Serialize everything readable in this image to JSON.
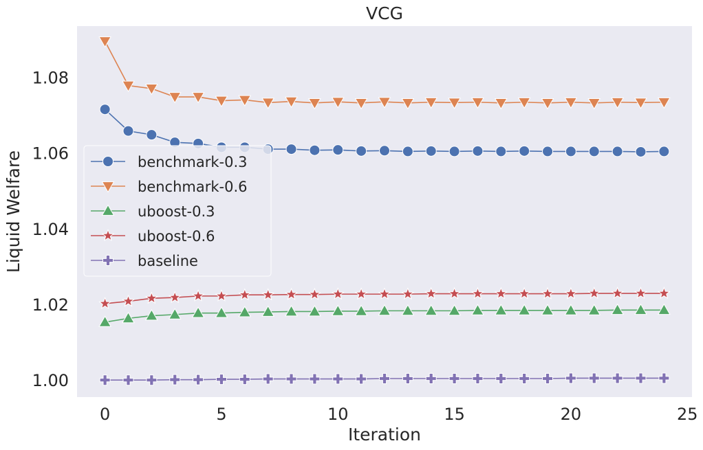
{
  "chart_data": {
    "type": "line",
    "title": "VCG",
    "xlabel": "Iteration",
    "ylabel": "Liquid Welfare",
    "xlim": [
      -1.2,
      25.2
    ],
    "ylim": [
      0.9955,
      1.0935
    ],
    "xticks": [
      0,
      5,
      10,
      15,
      20,
      25
    ],
    "xtick_labels": [
      "0",
      "5",
      "10",
      "15",
      "20",
      "25"
    ],
    "yticks": [
      1.0,
      1.02,
      1.04,
      1.06,
      1.08
    ],
    "ytick_labels": [
      "1.00",
      "1.02",
      "1.04",
      "1.06",
      "1.08"
    ],
    "grid": false,
    "legend_position": "center-left",
    "x": [
      0,
      1,
      2,
      3,
      4,
      5,
      6,
      7,
      8,
      9,
      10,
      11,
      12,
      13,
      14,
      15,
      16,
      17,
      18,
      19,
      20,
      21,
      22,
      23,
      24
    ],
    "series": [
      {
        "name": "benchmark-0.3",
        "color": "#4c72b0",
        "marker": "circle",
        "values": [
          1.0715,
          1.0658,
          1.0648,
          1.0628,
          1.0625,
          1.0615,
          1.0615,
          1.061,
          1.061,
          1.0607,
          1.0608,
          1.0605,
          1.0606,
          1.0604,
          1.0605,
          1.0604,
          1.0605,
          1.0604,
          1.0605,
          1.0604,
          1.0604,
          1.0604,
          1.0604,
          1.0603,
          1.0604
        ]
      },
      {
        "name": "benchmark-0.6",
        "color": "#dd8452",
        "marker": "triangle-down",
        "values": [
          1.0895,
          1.0778,
          1.077,
          1.0748,
          1.0748,
          1.0738,
          1.074,
          1.0733,
          1.0736,
          1.0732,
          1.0735,
          1.0732,
          1.0735,
          1.0732,
          1.0734,
          1.0733,
          1.0734,
          1.0732,
          1.0734,
          1.0732,
          1.0734,
          1.0732,
          1.0734,
          1.0733,
          1.0734
        ]
      },
      {
        "name": "uboost-0.3",
        "color": "#55a868",
        "marker": "triangle-up",
        "values": [
          1.0153,
          1.0163,
          1.017,
          1.0173,
          1.0177,
          1.0177,
          1.0179,
          1.018,
          1.0181,
          1.0181,
          1.0182,
          1.0182,
          1.0183,
          1.0183,
          1.0183,
          1.0183,
          1.0184,
          1.0184,
          1.0184,
          1.0184,
          1.0184,
          1.0184,
          1.0185,
          1.0185,
          1.0185
        ]
      },
      {
        "name": "uboost-0.6",
        "color": "#c44e52",
        "marker": "star",
        "values": [
          1.0202,
          1.0208,
          1.0216,
          1.0218,
          1.0222,
          1.0222,
          1.0225,
          1.0225,
          1.0226,
          1.0226,
          1.0227,
          1.0227,
          1.0227,
          1.0227,
          1.0228,
          1.0228,
          1.0228,
          1.0228,
          1.0228,
          1.0228,
          1.0228,
          1.0229,
          1.0229,
          1.0229,
          1.0229
        ]
      },
      {
        "name": "baseline",
        "color": "#8172b3",
        "marker": "plus",
        "values": [
          1.0,
          1.0,
          1.0,
          1.0001,
          1.0001,
          1.0002,
          1.0002,
          1.0003,
          1.0003,
          1.0003,
          1.0003,
          1.0003,
          1.0004,
          1.0004,
          1.0004,
          1.0004,
          1.0004,
          1.0004,
          1.0004,
          1.0004,
          1.0005,
          1.0005,
          1.0005,
          1.0005,
          1.0005
        ]
      }
    ]
  },
  "colors": {
    "plot_background": "#eaeaf2",
    "text": "#262626",
    "legend_background": "#eaeaf2"
  }
}
